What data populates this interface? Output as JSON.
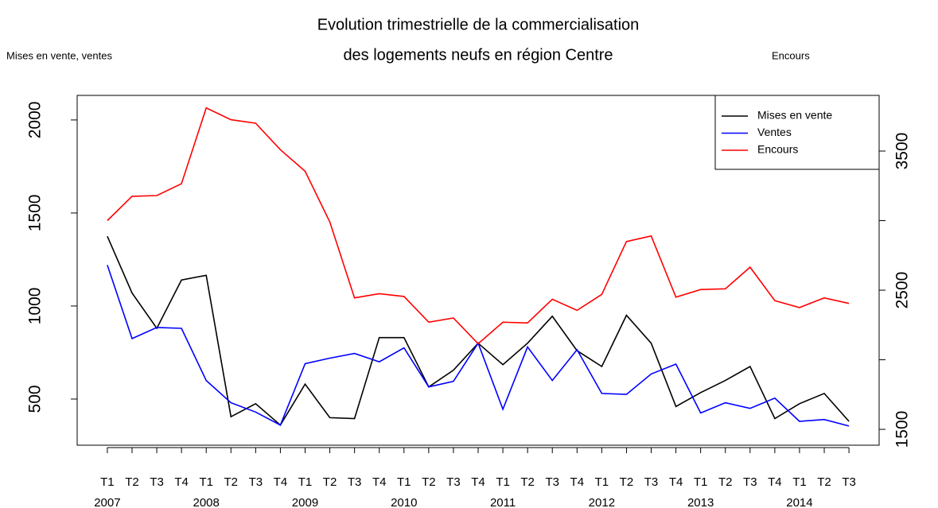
{
  "chart_data": {
    "type": "line",
    "title": [
      "Evolution trimestrielle de la commercialisation",
      "des logements neufs en région Centre"
    ],
    "ylabel": "Mises en vente, ventes",
    "y2label": "Encours",
    "categories": [
      "T1",
      "T2",
      "T3",
      "T4",
      "T1",
      "T2",
      "T3",
      "T4",
      "T1",
      "T2",
      "T3",
      "T4",
      "T1",
      "T2",
      "T3",
      "T4",
      "T1",
      "T2",
      "T3",
      "T4",
      "T1",
      "T2",
      "T3",
      "T4",
      "T1",
      "T2",
      "T3",
      "T4",
      "T1",
      "T2",
      "T3"
    ],
    "years": [
      "2007",
      "2008",
      "2009",
      "2010",
      "2011",
      "2012",
      "2013",
      "2014"
    ],
    "series": [
      {
        "name": "Mises en vente",
        "color": "#000000",
        "values": [
          1375,
          1070,
          880,
          1140,
          1165,
          405,
          475,
          360,
          580,
          400,
          395,
          830,
          830,
          565,
          655,
          800,
          685,
          800,
          945,
          760,
          675,
          950,
          800,
          460,
          535,
          600,
          675,
          395,
          475,
          530,
          380
        ]
      },
      {
        "name": "Ventes",
        "color": "#0000ff",
        "values": [
          1220,
          825,
          885,
          880,
          600,
          480,
          430,
          360,
          690,
          720,
          745,
          700,
          775,
          565,
          595,
          800,
          445,
          780,
          600,
          765,
          530,
          525,
          635,
          688,
          425,
          480,
          450,
          505,
          380,
          390,
          355
        ]
      },
      {
        "name": "Encours",
        "color": "#ff0000",
        "axis": "y2",
        "values": [
          3000,
          3175,
          3180,
          3265,
          3810,
          3725,
          3700,
          3510,
          3355,
          2990,
          2445,
          2475,
          2455,
          2270,
          2300,
          2115,
          2270,
          2265,
          2435,
          2355,
          2470,
          2850,
          2890,
          2450,
          2505,
          2510,
          2665,
          2425,
          2375,
          2445,
          2405
        ]
      }
    ],
    "ylim": [
      252,
      2132
    ],
    "yticks": [
      500,
      1000,
      1500,
      2000
    ],
    "y2lim": [
      1386,
      3900
    ],
    "y2ticks": [
      1500,
      2500,
      3500
    ],
    "y2minorticks": [
      2000,
      3000
    ],
    "legend": "topright"
  }
}
